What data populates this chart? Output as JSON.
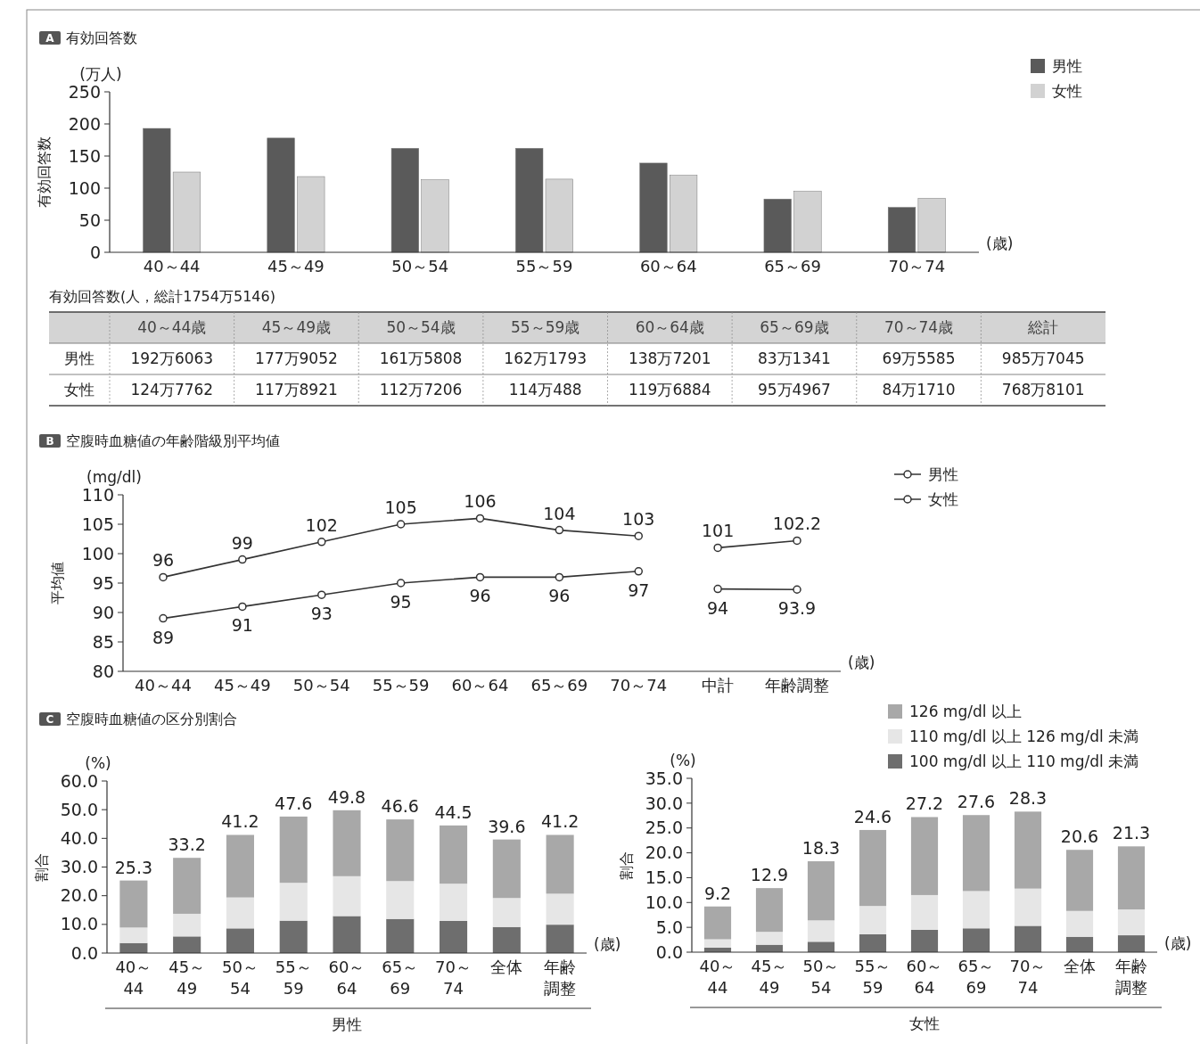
{
  "chart_data": [
    {
      "type": "bar",
      "title": "A 有効回答数",
      "ylabel": "有効回答数",
      "annotations": [
        "(万人)",
        "(歳)"
      ],
      "categories": [
        "40～44",
        "45～49",
        "50～54",
        "55～59",
        "60～64",
        "65～69",
        "70～74"
      ],
      "series": [
        {
          "name": "男性",
          "color": "#5a5a5a",
          "values": [
            193,
            178,
            162,
            162,
            139,
            83,
            70
          ]
        },
        {
          "name": "女性",
          "color": "#d2d2d2",
          "values": [
            125,
            118,
            113,
            114,
            120,
            95,
            84
          ]
        }
      ],
      "ylim": [
        0,
        250
      ],
      "yticks": [
        0,
        50,
        100,
        150,
        200,
        250
      ],
      "legend": "top right"
    },
    {
      "type": "other",
      "title": "有効回答数(人，総計1754万5146)",
      "categories": [
        "40～44歳",
        "45～49歳",
        "50～54歳",
        "55～59歳",
        "60～64歳",
        "65～69歳",
        "70～74歳",
        "総計"
      ],
      "y_categories": [
        "男性",
        "女性"
      ],
      "cell_labels": [
        [
          "192万6063",
          "177万9052",
          "161万5808",
          "162万1793",
          "138万7201",
          "83万1341",
          "69万5585",
          "985万7045"
        ],
        [
          "124万7762",
          "117万8921",
          "112万7206",
          "114万488",
          "119万6884",
          "95万4967",
          "84万1710",
          "768万8101"
        ]
      ]
    },
    {
      "type": "line",
      "title": "B 空腹時血糖値の年齢階級別平均値",
      "ylabel": "平均値",
      "annotations": [
        "(mg/dl)",
        "(歳)"
      ],
      "categories": [
        "40～44",
        "45～49",
        "50～54",
        "55～59",
        "60～64",
        "65～69",
        "70～74",
        "中計",
        "年齢調整"
      ],
      "series": [
        {
          "name": "男性",
          "color": "#333333",
          "values": [
            96,
            99,
            102,
            105,
            106,
            104,
            103,
            null,
            null
          ]
        },
        {
          "name": "女性",
          "color": "#333333",
          "values": [
            89,
            91,
            93,
            95,
            96,
            96,
            97,
            null,
            null
          ]
        },
        {
          "color": "#333333",
          "values": [
            null,
            null,
            null,
            null,
            null,
            null,
            null,
            101,
            102.2
          ]
        },
        {
          "color": "#333333",
          "values": [
            null,
            null,
            null,
            null,
            null,
            null,
            null,
            94,
            93.9
          ]
        }
      ],
      "ylim": [
        80,
        110
      ],
      "yticks": [
        80,
        85,
        90,
        95,
        100,
        105,
        110
      ],
      "data_labels": true,
      "marker": "circle",
      "line_style": "solid",
      "legend": "top right"
    },
    {
      "type": "bar",
      "title": "C 空腹時血糖値の区分別割合",
      "ylabel": "割合",
      "xlabel": "男性",
      "annotations": [
        "(%)",
        "(歳)"
      ],
      "categories": [
        "40～44",
        "45～49",
        "50～54",
        "55～59",
        "60～64",
        "65～69",
        "70～74",
        "全体",
        "年齢調整"
      ],
      "stacked": true,
      "series": [
        {
          "color": "#6e6e6e",
          "values": [
            3.5,
            5.8,
            8.6,
            11.3,
            12.9,
            11.9,
            11.2,
            9.1,
            9.9
          ]
        },
        {
          "color": "#e6e6e6",
          "values": [
            5.4,
            7.9,
            10.8,
            13.2,
            13.9,
            13.2,
            13.0,
            10.1,
            10.8
          ]
        },
        {
          "color": "#a8a8a8",
          "values": [
            16.4,
            19.5,
            21.8,
            23.1,
            23.0,
            21.5,
            20.3,
            20.4,
            20.5
          ]
        }
      ],
      "totals": [
        "25.3",
        "33.2",
        "41.2",
        "47.6",
        "49.8",
        "46.6",
        "44.5",
        "39.6",
        "41.2"
      ],
      "ylim": [
        0,
        60
      ],
      "yticks": [
        {
          "value": 0,
          "label": "0.0"
        },
        {
          "value": 10,
          "label": "10.0"
        },
        {
          "value": 20,
          "label": "20.0"
        },
        {
          "value": 30,
          "label": "30.0"
        },
        {
          "value": 40,
          "label": "40.0"
        },
        {
          "value": 50,
          "label": "50.0"
        },
        {
          "value": 60,
          "label": "60.0"
        }
      ]
    },
    {
      "type": "bar",
      "ylabel": "割合",
      "xlabel": "女性",
      "annotations": [
        "(%)",
        "(歳)"
      ],
      "categories": [
        "40～44",
        "45～49",
        "50～54",
        "55～59",
        "60～64",
        "65～69",
        "70～74",
        "全体",
        "年齢調整"
      ],
      "stacked": true,
      "series": [
        {
          "name": "100 mg/dl 以上 110 mg/dl 未満",
          "color": "#6e6e6e",
          "values": [
            0.9,
            1.5,
            2.1,
            3.6,
            4.5,
            4.8,
            5.3,
            3.1,
            3.4
          ]
        },
        {
          "name": "110 mg/dl 以上 126 mg/dl 未満",
          "color": "#e6e6e6",
          "values": [
            1.7,
            2.6,
            4.3,
            5.7,
            7.0,
            7.5,
            7.5,
            5.2,
            5.2
          ]
        },
        {
          "name": "126 mg/dl 以上",
          "color": "#a8a8a8",
          "values": [
            6.6,
            8.8,
            11.9,
            15.3,
            15.7,
            15.3,
            15.5,
            12.3,
            12.7
          ]
        }
      ],
      "totals": [
        "9.2",
        "12.9",
        "18.3",
        "24.6",
        "27.2",
        "27.6",
        "28.3",
        "20.6",
        "21.3"
      ],
      "ylim": [
        0,
        35
      ],
      "yticks": [
        {
          "value": 0,
          "label": "0.0"
        },
        {
          "value": 5,
          "label": "5.0"
        },
        {
          "value": 10,
          "label": "10.0"
        },
        {
          "value": 15,
          "label": "15.0"
        },
        {
          "value": 20,
          "label": "20.0"
        },
        {
          "value": 25,
          "label": "25.0"
        },
        {
          "value": 30,
          "label": "30.0"
        },
        {
          "value": 35,
          "label": "35.0"
        }
      ],
      "legend": "top right"
    }
  ]
}
